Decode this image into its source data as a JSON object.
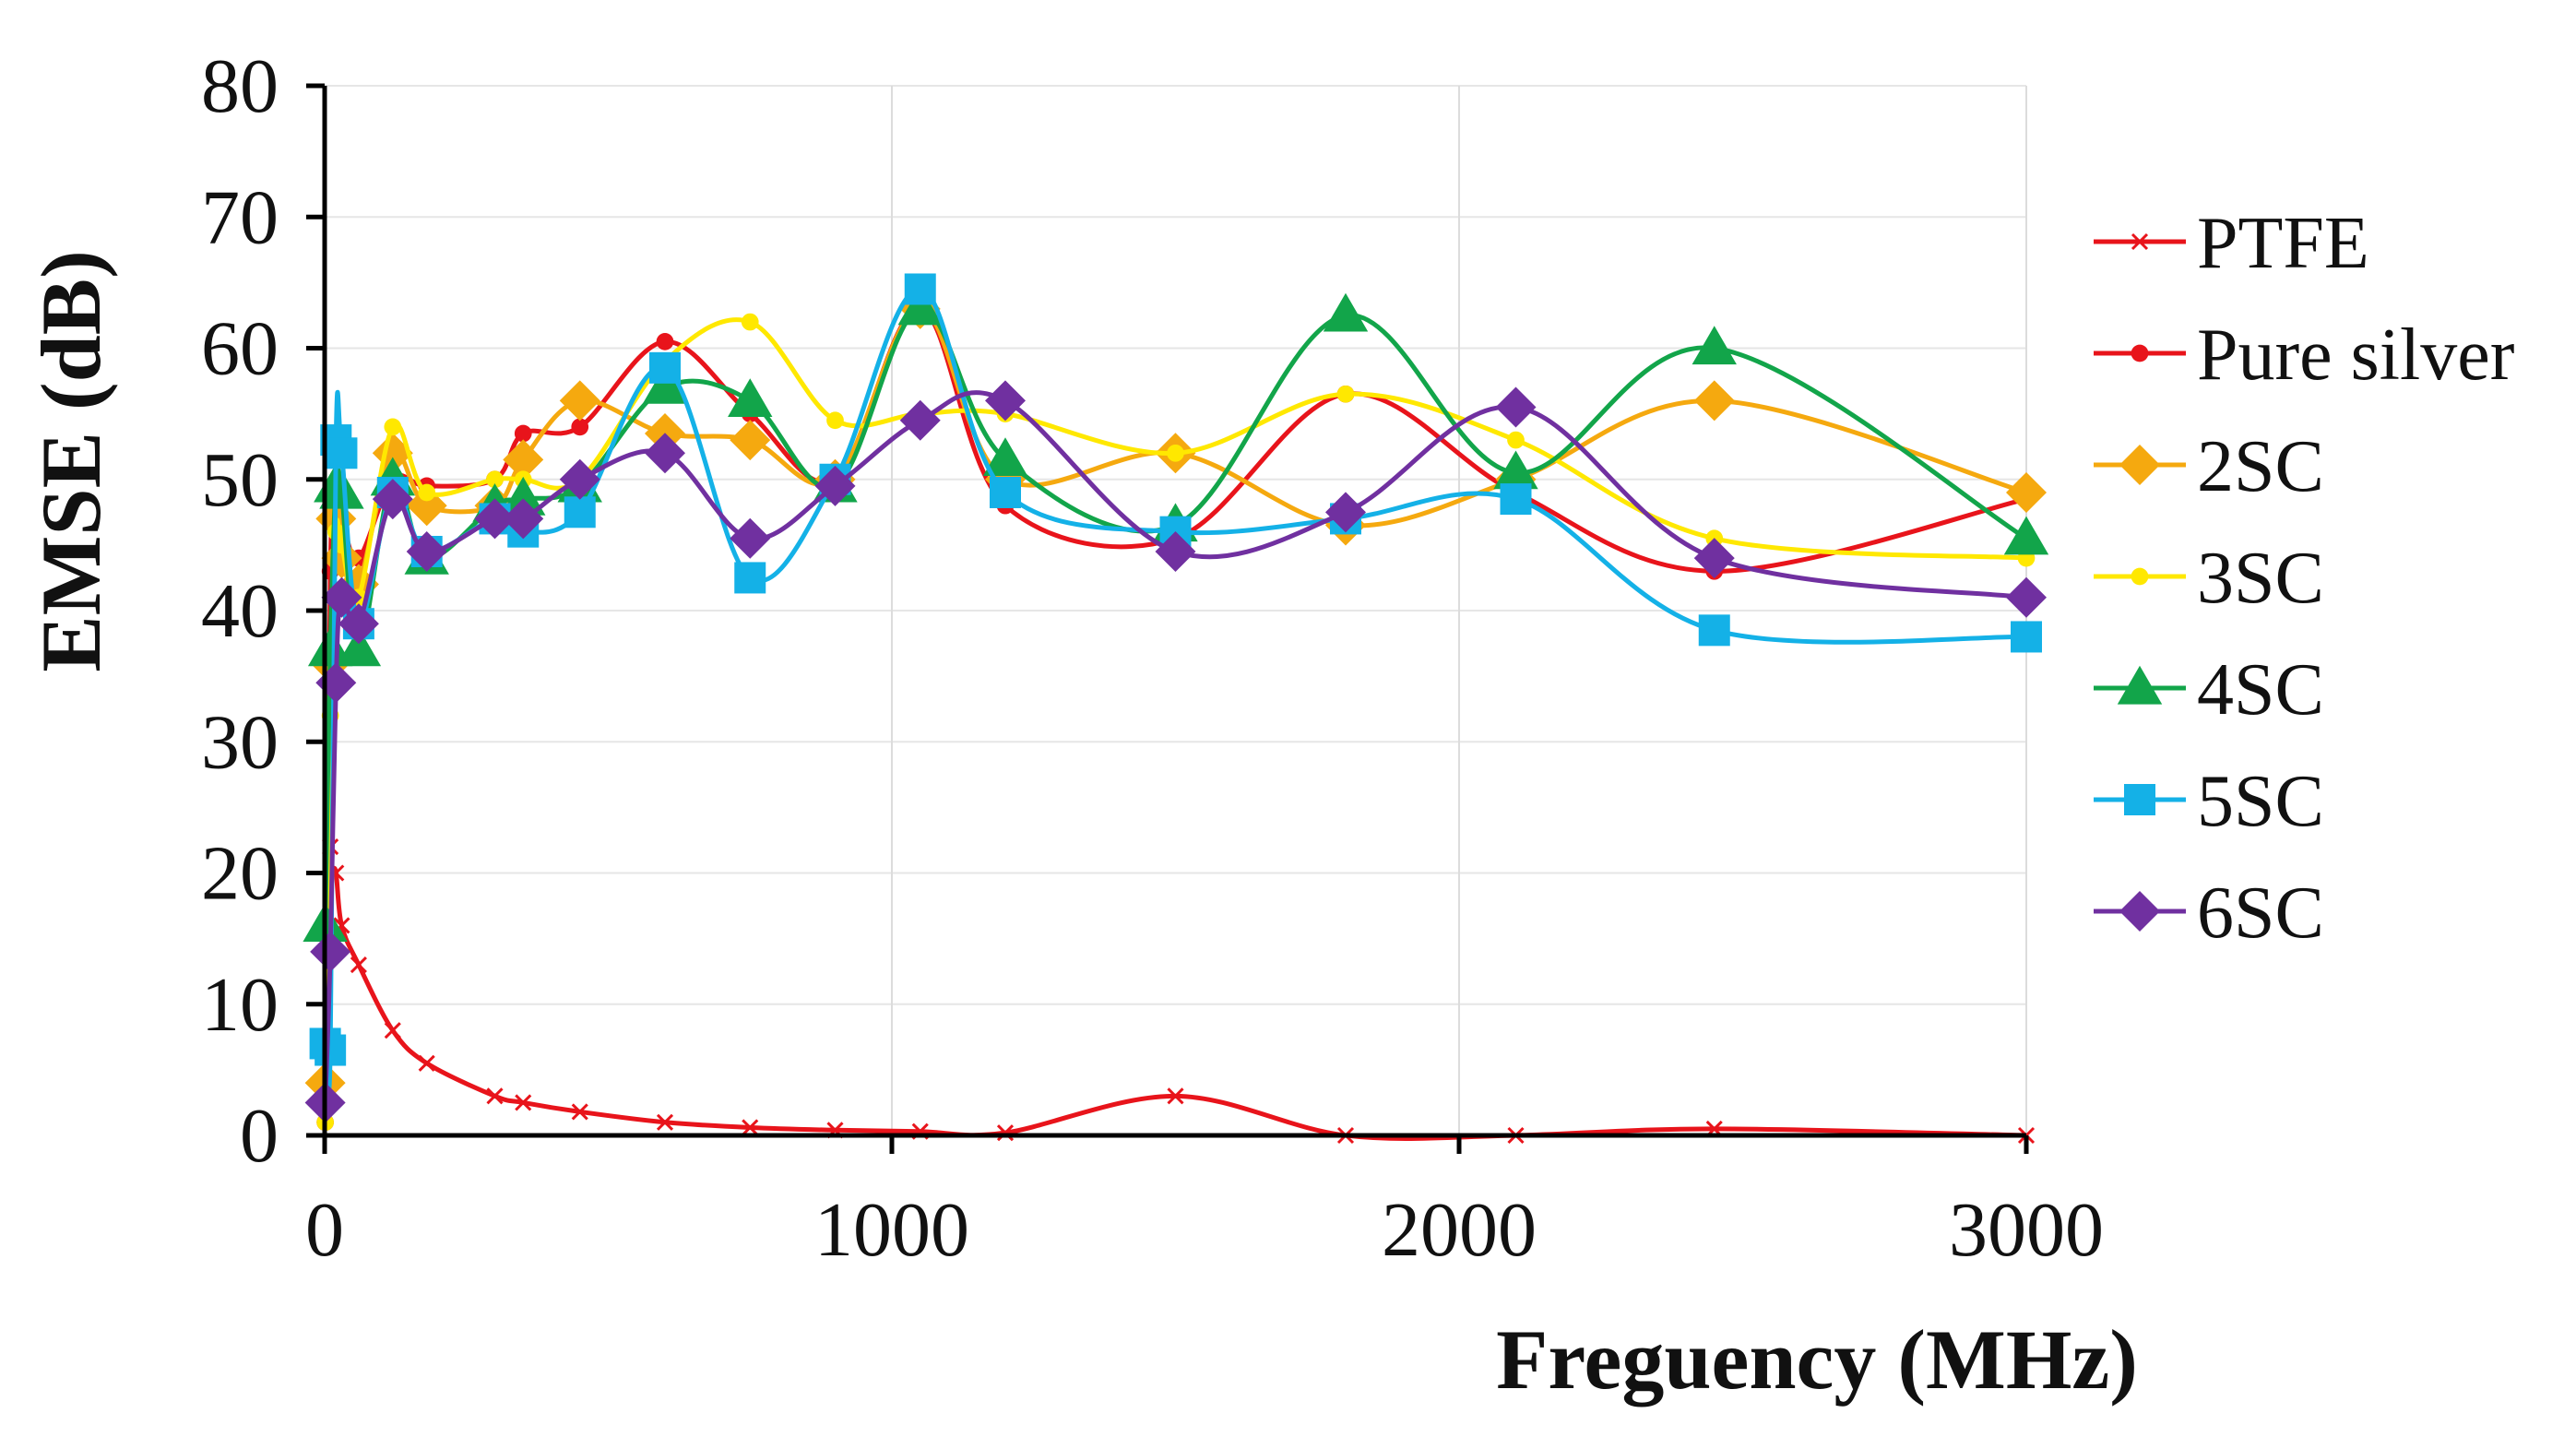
{
  "chart_data": {
    "type": "line",
    "title": "",
    "xlabel": "Freguency  (MHz)",
    "ylabel": "EMSE (dB)",
    "xlim": [
      0,
      3000
    ],
    "ylim": [
      0,
      80
    ],
    "xticks": [
      0,
      1000,
      2000,
      3000
    ],
    "yticks": [
      0,
      10,
      20,
      30,
      40,
      50,
      60,
      70,
      80
    ],
    "grid": "vertical",
    "legend_position": "right",
    "series": [
      {
        "name": "PTFE",
        "color": "#e8141b",
        "marker": "x",
        "x": [
          1,
          10,
          20,
          30,
          60,
          120,
          180,
          300,
          350,
          450,
          600,
          750,
          900,
          1050,
          1200,
          1500,
          1800,
          2100,
          2450,
          3000
        ],
        "y": [
          36,
          22,
          20,
          16,
          13,
          8,
          5.5,
          3,
          2.5,
          1.8,
          1,
          0.6,
          0.4,
          0.3,
          0.2,
          3,
          0,
          0,
          0.5,
          0
        ]
      },
      {
        "name": "Pure silver",
        "color": "#e8141b",
        "marker": "circle",
        "x": [
          1,
          10,
          20,
          30,
          60,
          120,
          180,
          300,
          350,
          450,
          600,
          750,
          900,
          1050,
          1200,
          1500,
          1800,
          2100,
          2450,
          3000
        ],
        "y": [
          1,
          43,
          48,
          47,
          44,
          50,
          49.5,
          50,
          53.5,
          54,
          60.5,
          55,
          50,
          63,
          48,
          45.5,
          56.5,
          49,
          43,
          48.5
        ]
      },
      {
        "name": "2SC",
        "color": "#f5a90f",
        "marker": "diamond",
        "x": [
          1,
          10,
          20,
          30,
          60,
          120,
          180,
          300,
          350,
          450,
          600,
          750,
          900,
          1050,
          1200,
          1500,
          1800,
          2100,
          2450,
          3000
        ],
        "y": [
          4,
          36,
          47,
          44,
          42,
          52,
          48,
          48,
          51.5,
          56,
          53.5,
          53,
          50,
          63,
          50,
          52,
          46.5,
          50,
          56,
          49
        ]
      },
      {
        "name": "3SC",
        "color": "#ffe800",
        "marker": "circle",
        "x": [
          1,
          10,
          20,
          30,
          60,
          120,
          180,
          300,
          350,
          450,
          600,
          750,
          900,
          1050,
          1200,
          1500,
          1800,
          2100,
          2450,
          3000
        ],
        "y": [
          1,
          32,
          46,
          45,
          41,
          54,
          49,
          50,
          50,
          50,
          59,
          62,
          54.5,
          55,
          55,
          52,
          56.5,
          53,
          45.5,
          44
        ]
      },
      {
        "name": "4SC",
        "color": "#12a54a",
        "marker": "triangle",
        "x": [
          1,
          10,
          20,
          30,
          60,
          120,
          180,
          300,
          350,
          450,
          600,
          750,
          900,
          1050,
          1200,
          1500,
          1800,
          2100,
          2450,
          3000
        ],
        "y": [
          16,
          37,
          49.5,
          49,
          37,
          50,
          44,
          48,
          48.5,
          49.5,
          57,
          56,
          49.5,
          63,
          51.5,
          46.5,
          62.5,
          50.5,
          60,
          45.5
        ]
      },
      {
        "name": "5SC",
        "color": "#14b1e7",
        "marker": "square",
        "x": [
          1,
          10,
          20,
          30,
          60,
          120,
          180,
          300,
          350,
          450,
          600,
          750,
          900,
          1050,
          1200,
          1500,
          1800,
          2100,
          2450,
          3000
        ],
        "y": [
          7,
          6.5,
          53,
          52,
          39,
          49,
          44.5,
          47,
          46,
          47.5,
          58.5,
          42.5,
          50,
          64.5,
          49,
          46,
          47,
          48.5,
          38.5,
          38
        ]
      },
      {
        "name": "6SC",
        "color": "#7030a0",
        "marker": "diamond",
        "x": [
          1,
          10,
          20,
          30,
          60,
          120,
          180,
          300,
          350,
          450,
          600,
          750,
          900,
          1050,
          1200,
          1500,
          1800,
          2100,
          2450,
          3000
        ],
        "y": [
          2.5,
          14,
          34.5,
          41,
          39,
          48.5,
          44.5,
          47,
          47,
          50,
          52,
          45.5,
          49.5,
          54.5,
          56,
          44.5,
          47.5,
          55.5,
          44,
          41
        ]
      }
    ]
  }
}
